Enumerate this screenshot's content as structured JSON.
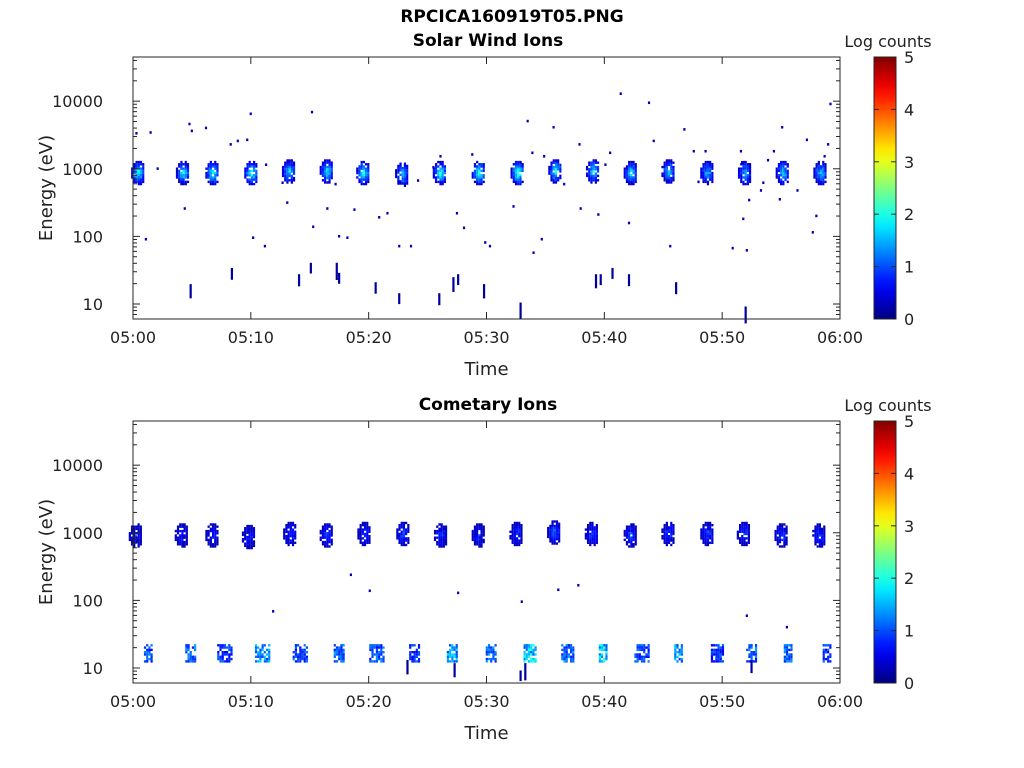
{
  "page_title": "RPCICA160919T05.PNG",
  "colorbar": {
    "label": "Log counts",
    "ticks": [
      "0",
      "1",
      "2",
      "3",
      "4",
      "5"
    ],
    "range": [
      0,
      5
    ],
    "colormap": "jet"
  },
  "chart_data": [
    {
      "type": "heatmap",
      "title": "Solar Wind Ions",
      "xlabel": "Time",
      "ylabel": "Energy (eV)",
      "x_ticks": [
        "05:00",
        "05:10",
        "05:20",
        "05:30",
        "05:40",
        "05:50",
        "06:00"
      ],
      "xlim_minutes": [
        0,
        60
      ],
      "y_scale": "log",
      "y_ticks": [
        "10",
        "100",
        "1000",
        "10000"
      ],
      "ylim": [
        6,
        45000
      ],
      "bursts": [
        {
          "t": 0.4,
          "e": 900,
          "v": 2.0
        },
        {
          "t": 4.2,
          "e": 900,
          "v": 1.9
        },
        {
          "t": 6.7,
          "e": 900,
          "v": 2.0
        },
        {
          "t": 10.0,
          "e": 900,
          "v": 2.2
        },
        {
          "t": 13.2,
          "e": 950,
          "v": 1.8
        },
        {
          "t": 16.4,
          "e": 950,
          "v": 1.8
        },
        {
          "t": 19.5,
          "e": 900,
          "v": 2.0
        },
        {
          "t": 22.8,
          "e": 850,
          "v": 1.7
        },
        {
          "t": 26.0,
          "e": 900,
          "v": 2.1
        },
        {
          "t": 29.3,
          "e": 900,
          "v": 2.1
        },
        {
          "t": 32.6,
          "e": 900,
          "v": 2.3
        },
        {
          "t": 35.8,
          "e": 950,
          "v": 2.0
        },
        {
          "t": 39.0,
          "e": 950,
          "v": 1.8
        },
        {
          "t": 42.2,
          "e": 900,
          "v": 1.8
        },
        {
          "t": 45.4,
          "e": 950,
          "v": 1.7
        },
        {
          "t": 48.7,
          "e": 900,
          "v": 1.6
        },
        {
          "t": 51.9,
          "e": 900,
          "v": 1.6
        },
        {
          "t": 55.1,
          "e": 900,
          "v": 1.7
        },
        {
          "t": 58.3,
          "e": 900,
          "v": 1.7
        }
      ],
      "sparse": [
        [
          0.2,
          3500
        ],
        [
          1.4,
          3600
        ],
        [
          4.7,
          4800
        ],
        [
          4.9,
          3800
        ],
        [
          6.1,
          4200
        ],
        [
          8.2,
          2400
        ],
        [
          8.8,
          2700
        ],
        [
          9.6,
          2800
        ],
        [
          9.9,
          6800
        ],
        [
          4.3,
          270
        ],
        [
          1.0,
          95
        ],
        [
          10.1,
          100
        ],
        [
          11.1,
          75
        ],
        [
          13.0,
          330
        ],
        [
          15.1,
          7200
        ],
        [
          15.2,
          145
        ],
        [
          16.4,
          270
        ],
        [
          17.4,
          105
        ],
        [
          18.1,
          100
        ],
        [
          18.7,
          260
        ],
        [
          20.8,
          200
        ],
        [
          21.5,
          230
        ],
        [
          22.5,
          75
        ],
        [
          23.5,
          75
        ],
        [
          24.1,
          700
        ],
        [
          25.4,
          1100
        ],
        [
          26.0,
          1600
        ],
        [
          27.4,
          230
        ],
        [
          28.0,
          140
        ],
        [
          28.7,
          1700
        ],
        [
          29.8,
          85
        ],
        [
          30.2,
          75
        ],
        [
          32.2,
          290
        ],
        [
          32.8,
          1300
        ],
        [
          33.4,
          5300
        ],
        [
          33.9,
          60
        ],
        [
          34.6,
          95
        ],
        [
          34.8,
          1600
        ],
        [
          35.6,
          4300
        ],
        [
          37.8,
          2400
        ],
        [
          37.9,
          270
        ],
        [
          39.4,
          220
        ],
        [
          40.0,
          1200
        ],
        [
          40.4,
          1800
        ],
        [
          41.3,
          13500
        ],
        [
          42.0,
          165
        ],
        [
          43.7,
          9900
        ],
        [
          44.1,
          2700
        ],
        [
          45.5,
          75
        ],
        [
          46.7,
          4000
        ],
        [
          47.5,
          1900
        ],
        [
          47.9,
          670
        ],
        [
          48.5,
          1900
        ],
        [
          50.8,
          70
        ],
        [
          51.5,
          1900
        ],
        [
          51.7,
          190
        ],
        [
          52.0,
          65
        ],
        [
          52.2,
          360
        ],
        [
          53.2,
          500
        ],
        [
          53.4,
          650
        ],
        [
          53.8,
          1400
        ],
        [
          54.3,
          1900
        ],
        [
          54.8,
          370
        ],
        [
          55.0,
          4300
        ],
        [
          56.3,
          500
        ],
        [
          57.1,
          2800
        ],
        [
          57.6,
          120
        ],
        [
          57.9,
          210
        ],
        [
          58.6,
          1600
        ],
        [
          59.1,
          9500
        ],
        [
          58.9,
          2400
        ],
        [
          11.2,
          1200
        ],
        [
          33.8,
          1800
        ],
        [
          51.6,
          1300
        ],
        [
          2.0,
          1050
        ],
        [
          12.6,
          650
        ],
        [
          17.1,
          620
        ],
        [
          36.5,
          620
        ]
      ],
      "low_bars": [
        [
          4.8,
          15
        ],
        [
          8.3,
          26
        ],
        [
          14.0,
          21
        ],
        [
          15.0,
          31
        ],
        [
          17.2,
          31
        ],
        [
          17.4,
          22
        ],
        [
          20.5,
          16
        ],
        [
          22.5,
          11
        ],
        [
          25.9,
          11
        ],
        [
          27.1,
          19
        ],
        [
          27.5,
          21
        ],
        [
          29.7,
          15
        ],
        [
          32.8,
          8
        ],
        [
          39.2,
          21
        ],
        [
          39.6,
          21
        ],
        [
          40.6,
          26
        ],
        [
          42.0,
          21
        ],
        [
          46.0,
          16
        ],
        [
          51.9,
          7
        ]
      ]
    },
    {
      "type": "heatmap",
      "title": "Cometary Ions",
      "xlabel": "Time",
      "ylabel": "Energy (eV)",
      "x_ticks": [
        "05:00",
        "05:10",
        "05:20",
        "05:30",
        "05:40",
        "05:50",
        "06:00"
      ],
      "xlim_minutes": [
        0,
        60
      ],
      "y_scale": "log",
      "y_ticks": [
        "10",
        "100",
        "1000",
        "10000"
      ],
      "ylim": [
        6,
        45000
      ],
      "bursts": [
        {
          "t": 0.2,
          "e": 950,
          "v": 0.6
        },
        {
          "t": 4.1,
          "e": 950,
          "v": 0.7
        },
        {
          "t": 6.7,
          "e": 950,
          "v": 0.7
        },
        {
          "t": 9.8,
          "e": 900,
          "v": 0.8
        },
        {
          "t": 13.3,
          "e": 1000,
          "v": 0.9
        },
        {
          "t": 16.4,
          "e": 950,
          "v": 0.9
        },
        {
          "t": 19.6,
          "e": 1000,
          "v": 0.7
        },
        {
          "t": 22.9,
          "e": 1000,
          "v": 1.0
        },
        {
          "t": 26.1,
          "e": 950,
          "v": 0.9
        },
        {
          "t": 29.3,
          "e": 950,
          "v": 0.8
        },
        {
          "t": 32.5,
          "e": 1000,
          "v": 0.9
        },
        {
          "t": 35.7,
          "e": 1050,
          "v": 1.1
        },
        {
          "t": 38.9,
          "e": 1000,
          "v": 1.0
        },
        {
          "t": 42.2,
          "e": 950,
          "v": 1.0
        },
        {
          "t": 45.4,
          "e": 1000,
          "v": 1.0
        },
        {
          "t": 48.7,
          "e": 1000,
          "v": 1.0
        },
        {
          "t": 51.8,
          "e": 1000,
          "v": 1.0
        },
        {
          "t": 55.0,
          "e": 950,
          "v": 0.9
        },
        {
          "t": 58.2,
          "e": 950,
          "v": 0.9
        }
      ],
      "low_bursts": [
        {
          "t": 1.3,
          "v": 1.2
        },
        {
          "t": 4.9,
          "v": 1.3
        },
        {
          "t": 7.8,
          "v": 1.0
        },
        {
          "t": 11.0,
          "v": 1.5
        },
        {
          "t": 14.2,
          "v": 1.1
        },
        {
          "t": 17.5,
          "v": 1.2
        },
        {
          "t": 20.7,
          "v": 1.2
        },
        {
          "t": 23.9,
          "v": 1.0
        },
        {
          "t": 27.1,
          "v": 1.6
        },
        {
          "t": 30.4,
          "v": 1.3
        },
        {
          "t": 33.7,
          "v": 1.8
        },
        {
          "t": 36.9,
          "v": 1.3
        },
        {
          "t": 39.9,
          "v": 1.9
        },
        {
          "t": 43.2,
          "v": 1.1
        },
        {
          "t": 46.3,
          "v": 1.5
        },
        {
          "t": 49.6,
          "v": 1.0
        },
        {
          "t": 52.5,
          "v": 1.2
        },
        {
          "t": 55.6,
          "v": 1.3
        },
        {
          "t": 58.9,
          "v": 1.0
        }
      ],
      "sparse": [
        [
          11.8,
          72
        ],
        [
          18.4,
          250
        ],
        [
          20.0,
          145
        ],
        [
          27.5,
          135
        ],
        [
          32.9,
          100
        ],
        [
          36.0,
          150
        ],
        [
          37.7,
          175
        ],
        [
          52.0,
          62
        ],
        [
          55.4,
          42
        ]
      ],
      "low_bars": [
        [
          23.2,
          10
        ],
        [
          27.2,
          9
        ],
        [
          32.8,
          7
        ],
        [
          33.2,
          9
        ],
        [
          52.4,
          10
        ]
      ]
    }
  ]
}
